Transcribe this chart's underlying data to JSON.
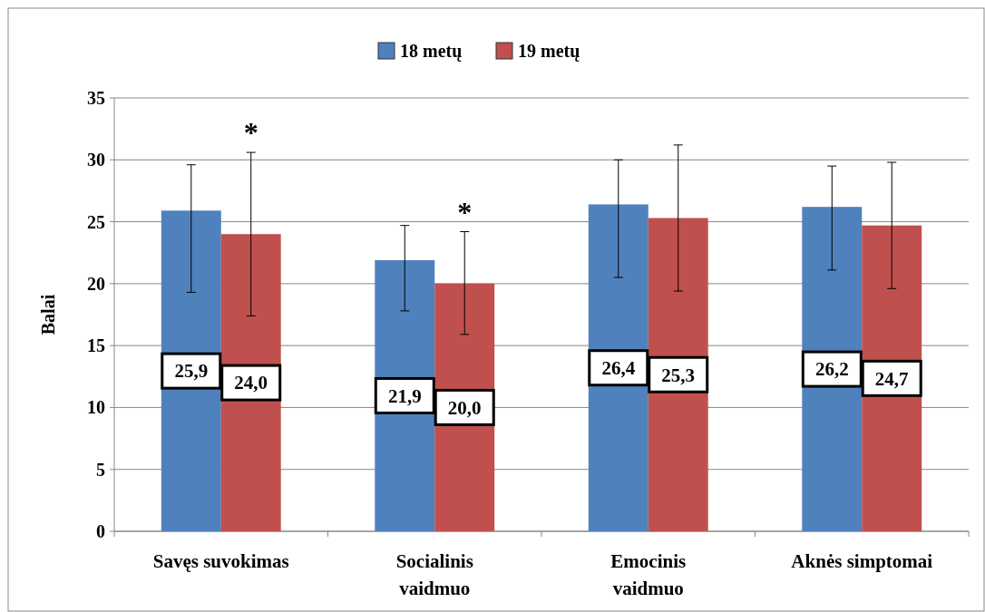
{
  "chart_data": {
    "type": "bar",
    "ylabel": "Balai",
    "categories": [
      "Savęs suvokimas",
      "Socialinis vaidmuo",
      "Emocinis vaidmuo",
      "Aknės simptomai"
    ],
    "series": [
      {
        "name": "18 metų",
        "color": "#4f81bd",
        "values": [
          25.9,
          21.9,
          26.4,
          26.2
        ],
        "errors": [
          [
            19.3,
            29.6
          ],
          [
            17.8,
            24.7
          ],
          [
            20.5,
            30.0
          ],
          [
            21.1,
            29.5
          ]
        ],
        "value_labels": [
          "25,9",
          "21,9",
          "26,4",
          "26,2"
        ]
      },
      {
        "name": "19 metų",
        "color": "#c0504d",
        "values": [
          24.0,
          20.0,
          25.3,
          24.7
        ],
        "errors": [
          [
            17.4,
            30.6
          ],
          [
            15.9,
            24.2
          ],
          [
            19.4,
            31.2
          ],
          [
            19.6,
            29.8
          ]
        ],
        "value_labels": [
          "24,0",
          "20,0",
          "25,3",
          "24,7"
        ]
      }
    ],
    "ylim": [
      0,
      35
    ],
    "yticks": [
      0,
      5,
      10,
      15,
      20,
      25,
      30,
      35
    ],
    "grid": "y",
    "legend": "top",
    "annotations": [
      "*",
      "*"
    ]
  }
}
